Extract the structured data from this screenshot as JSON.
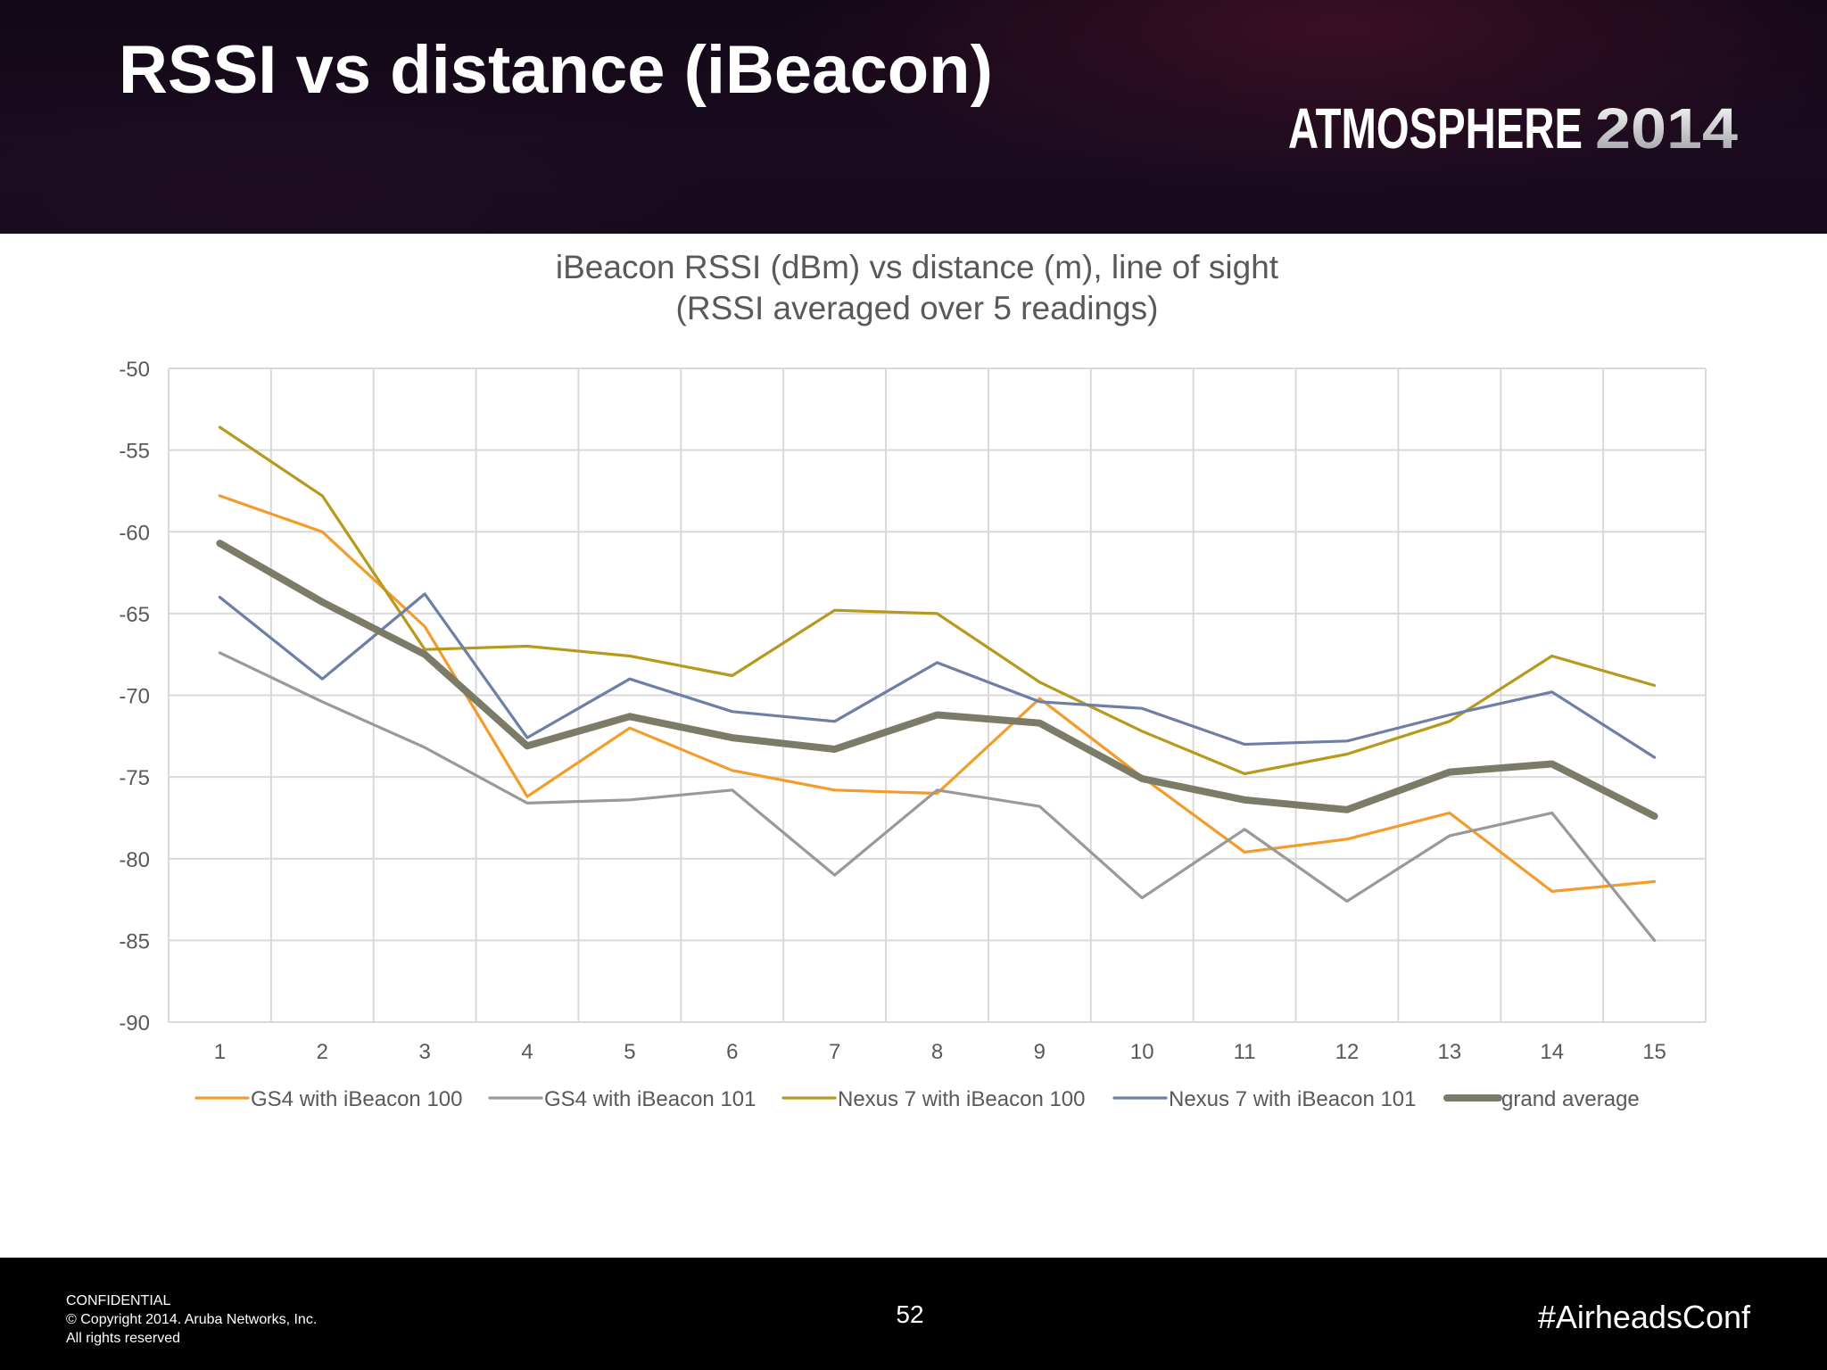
{
  "slide": {
    "title": "RSSI vs distance (iBeacon)",
    "brand": {
      "word": "ATMOSPHERE",
      "year": "2014"
    },
    "footer": {
      "confidential_lines": [
        "CONFIDENTIAL",
        "© Copyright 2014. Aruba Networks, Inc.",
        "All rights reserved"
      ],
      "page_number": "52",
      "hashtag": "#AirheadsConf"
    }
  },
  "chart_data": {
    "type": "line",
    "title": [
      "iBeacon RSSI (dBm) vs distance (m), line of sight",
      "(RSSI averaged over 5 readings)"
    ],
    "xlabel": "",
    "ylabel": "",
    "categories": [
      "1",
      "2",
      "3",
      "4",
      "5",
      "6",
      "7",
      "8",
      "9",
      "10",
      "11",
      "12",
      "13",
      "14",
      "15"
    ],
    "ylim": [
      -90,
      -50
    ],
    "yticks": [
      -50,
      -55,
      -60,
      -65,
      -70,
      -75,
      -80,
      -85,
      -90
    ],
    "grid": true,
    "legend_position": "bottom",
    "series": [
      {
        "name": "GS4 with iBeacon 100",
        "color": "#f39c2b",
        "values": [
          -57.8,
          -60,
          -65.8,
          -76.2,
          -72,
          -74.6,
          -75.8,
          -76,
          -70.2,
          -75,
          -79.6,
          -78.8,
          -77.2,
          -82,
          -81.4
        ]
      },
      {
        "name": "GS4 with iBeacon 101",
        "color": "#999999",
        "values": [
          -67.4,
          -70.4,
          -73.2,
          -76.6,
          -76.4,
          -75.8,
          -81,
          -75.8,
          -76.8,
          -82.4,
          -78.2,
          -82.6,
          -78.6,
          -77.2,
          -85
        ]
      },
      {
        "name": "Nexus 7 with iBeacon 100",
        "color": "#b59a1e",
        "values": [
          -53.6,
          -57.8,
          -67.2,
          -67,
          -67.6,
          -68.8,
          -64.8,
          -65,
          -69.2,
          -72.2,
          -74.8,
          -73.6,
          -71.6,
          -67.6,
          -69.4
        ]
      },
      {
        "name": "Nexus 7 with iBeacon 101",
        "color": "#6e7fa6",
        "values": [
          -64,
          -69,
          -63.8,
          -72.6,
          -69,
          -71,
          -71.6,
          -68,
          -70.4,
          -70.8,
          -73,
          -72.8,
          -71.2,
          -69.8,
          -73.8
        ]
      },
      {
        "name": "grand average",
        "color": "#7b7b68",
        "values": [
          -60.7,
          -64.3,
          -67.5,
          -73.1,
          -71.3,
          -72.6,
          -73.3,
          -71.2,
          -71.7,
          -75.1,
          -76.4,
          -77,
          -74.7,
          -74.2,
          -77.4
        ]
      }
    ]
  }
}
